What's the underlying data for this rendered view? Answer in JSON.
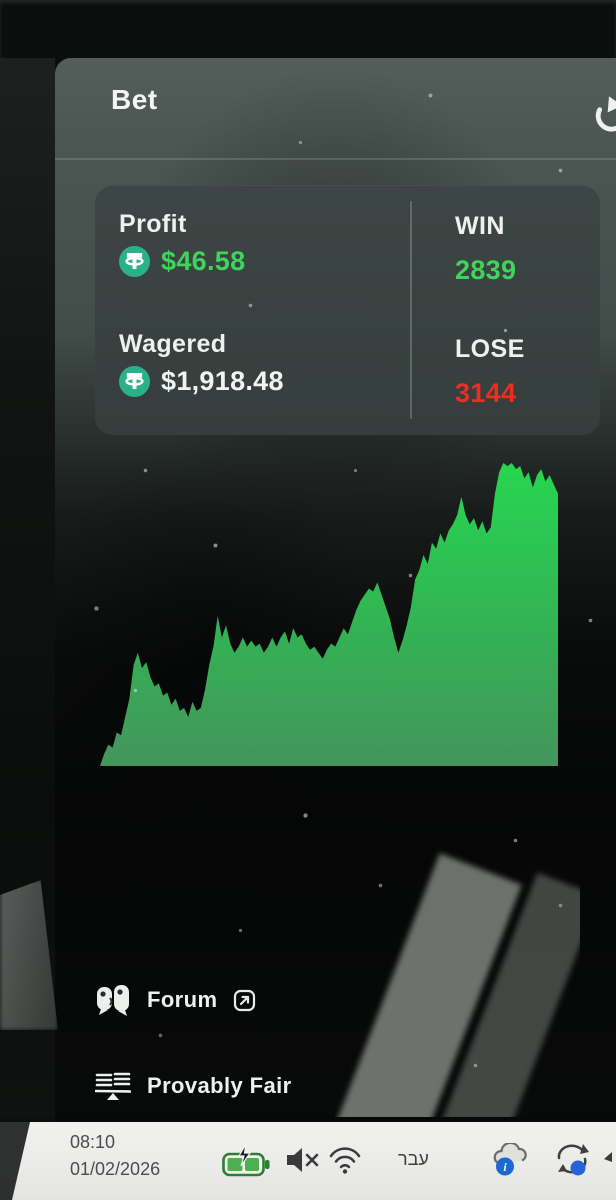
{
  "header": {
    "title": "Bet",
    "refresh_icon": "refresh-history-icon"
  },
  "stats": {
    "profit": {
      "label": "Profit",
      "value": "$46.58",
      "currency_icon": "tether-coin-icon",
      "value_color": "#3fd55c"
    },
    "wagered": {
      "label": "Wagered",
      "value": "$1,918.48",
      "currency_icon": "tether-coin-icon",
      "value_color": "#f2f4f2"
    },
    "win": {
      "label": "WIN",
      "value": "2839",
      "value_color": "#3fd55c"
    },
    "lose": {
      "label": "LOSE",
      "value": "3144",
      "value_color": "#ea2e20"
    }
  },
  "chart_data": {
    "type": "area",
    "title": "",
    "xlabel": "",
    "ylabel": "",
    "legend": false,
    "grid": false,
    "ylim": [
      0,
      100
    ],
    "x_note": "session bet history, oldest left to newest right (no axis labels shown)",
    "y_note": "relative cumulative profit, % of chart height",
    "series": [
      {
        "name": "Profit",
        "values": [
          0,
          4,
          7,
          6,
          11,
          10,
          16,
          22,
          33,
          37,
          32,
          34,
          29,
          26,
          27,
          23,
          24,
          20,
          22,
          18,
          19,
          16,
          21,
          18,
          19,
          25,
          33,
          39,
          49,
          42,
          46,
          40,
          37,
          39,
          42,
          39,
          41,
          39,
          40,
          37,
          39,
          42,
          39,
          42,
          44,
          40,
          45,
          42,
          43,
          40,
          38,
          39,
          37,
          35,
          38,
          40,
          39,
          42,
          45,
          43,
          47,
          51,
          54,
          56,
          58,
          57,
          60,
          56,
          52,
          48,
          42,
          37,
          41,
          46,
          52,
          61,
          64,
          69,
          66,
          73,
          71,
          76,
          73,
          77,
          79,
          82,
          88,
          82,
          79,
          81,
          77,
          80,
          76,
          78,
          89,
          96,
          99,
          98,
          99,
          97,
          98,
          94,
          96,
          91,
          95,
          97,
          93,
          95,
          92,
          89
        ]
      }
    ],
    "fill_top_color": "#27d650",
    "fill_bottom_color": "#44955c",
    "background_color": "#10100f"
  },
  "footer_links": [
    {
      "label": "Forum",
      "icon": "chat-bubbles-icon",
      "external_link_icon": "external-link-icon"
    },
    {
      "label": "Provably Fair",
      "icon": "scales-icon"
    }
  ],
  "taskbar": {
    "time": "08:10",
    "date": "01/02/2026",
    "language_indicator": "עבר",
    "icons": [
      "battery-charging-icon",
      "volume-muted-icon",
      "wifi-icon",
      "cloud-info-icon",
      "sync-icon"
    ],
    "accent_blue": "#2563d9",
    "battery_green": "#3f9d3d"
  },
  "colors": {
    "profit_green": "#3fd55c",
    "lose_red": "#ea2e20",
    "tether_green": "#2bb189",
    "modal_gray": "#434d4a",
    "taskbar_bg": "#ecedeb"
  }
}
